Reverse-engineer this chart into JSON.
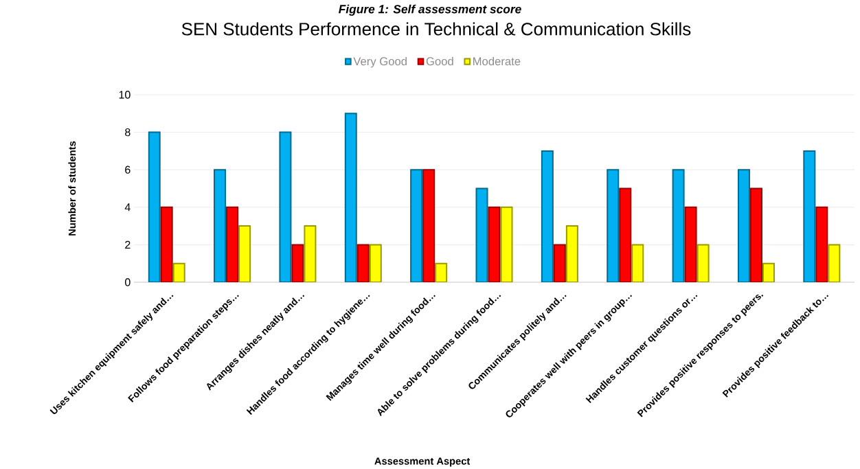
{
  "chart_data": {
    "type": "bar",
    "title": "SEN Students Performence in Technical & Communication Skills",
    "annotations": [
      "Figure 1: Self assessment score"
    ],
    "xlabel": "Assessment Aspect",
    "ylabel": "Number of students",
    "categories": [
      "Uses kitchen equipment safely and…",
      "Follows food preparation steps…",
      "Arranges dishes neatly and…",
      "Handles food according to hygiene…",
      "Manages time well during food…",
      "Able to solve problems during food…",
      "Communicates politely and…",
      "Cooperates well with peers in group…",
      "Handles customer questions or…",
      "Provides positive responses to peers.",
      "Provides positive feedback to…"
    ],
    "series": [
      {
        "name": "Very Good",
        "color": "#00b0f0",
        "values": [
          8,
          6,
          8,
          9,
          6,
          5,
          7,
          6,
          6,
          6,
          7
        ]
      },
      {
        "name": "Good",
        "color": "#ff0000",
        "values": [
          4,
          4,
          2,
          2,
          6,
          4,
          2,
          5,
          4,
          5,
          4
        ]
      },
      {
        "name": "Moderate",
        "color": "#ffff00",
        "values": [
          1,
          3,
          3,
          2,
          1,
          4,
          3,
          2,
          2,
          1,
          2
        ]
      }
    ],
    "ylim": [
      0,
      10
    ],
    "yticks": [
      0,
      2,
      4,
      6,
      8,
      10
    ],
    "grid": "y",
    "legend": "top"
  }
}
